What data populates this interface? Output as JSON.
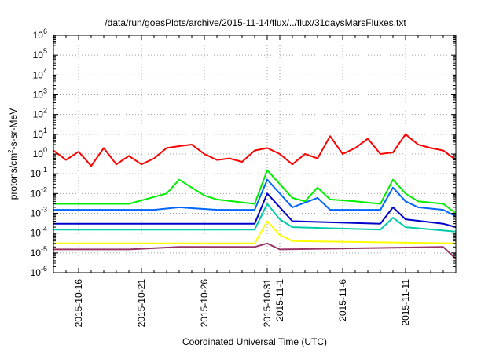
{
  "chart_data": {
    "type": "line",
    "title": "/data/run/goesPlots/archive/2015-11-14/flux/../flux/31daysMarsFluxes.txt",
    "xlabel": "Coordinated Universal Time (UTC)",
    "ylabel": "protons/cm²-s-sr-MeV",
    "ylabel_parts": [
      "protons/cm",
      "2",
      "-s-sr-MeV"
    ],
    "y_scale": "log",
    "ylim_exponents": [
      -6,
      6
    ],
    "y_ticks": [
      {
        "base": "10",
        "exp": "-6"
      },
      {
        "base": "10",
        "exp": "-5"
      },
      {
        "base": "10",
        "exp": "-4"
      },
      {
        "base": "10",
        "exp": "-3"
      },
      {
        "base": "10",
        "exp": "-2"
      },
      {
        "base": "10",
        "exp": "-1"
      },
      {
        "base": "10",
        "exp": "0"
      },
      {
        "base": "10",
        "exp": "1"
      },
      {
        "base": "10",
        "exp": "2"
      },
      {
        "base": "10",
        "exp": "3"
      },
      {
        "base": "10",
        "exp": "4"
      },
      {
        "base": "10",
        "exp": "5"
      },
      {
        "base": "10",
        "exp": "6"
      }
    ],
    "x_range": [
      "2015-10-14",
      "2015-11-15"
    ],
    "x_ticks": [
      {
        "label": "2015-10-16",
        "date": "2015-10-16"
      },
      {
        "label": "2015-10-21",
        "date": "2015-10-21"
      },
      {
        "label": "2015-10-26",
        "date": "2015-10-26"
      },
      {
        "label": "2015-10-31",
        "date": "2015-10-31"
      },
      {
        "label": "2015-11-1",
        "date": "2015-11-01"
      },
      {
        "label": "2015-11-6",
        "date": "2015-11-06"
      },
      {
        "label": "2015-11-11",
        "date": "2015-11-11"
      }
    ],
    "grid": true,
    "series": [
      {
        "color": "#ff0000",
        "points": [
          [
            "2015-10-14",
            1.5
          ],
          [
            "2015-10-15",
            0.5
          ],
          [
            "2015-10-16",
            1.3
          ],
          [
            "2015-10-17",
            0.25
          ],
          [
            "2015-10-18",
            2.0
          ],
          [
            "2015-10-19",
            0.3
          ],
          [
            "2015-10-20",
            0.8
          ],
          [
            "2015-10-21",
            0.3
          ],
          [
            "2015-10-22",
            0.6
          ],
          [
            "2015-10-23",
            2.0
          ],
          [
            "2015-10-24",
            2.5
          ],
          [
            "2015-10-25",
            3.0
          ],
          [
            "2015-10-26",
            1.0
          ],
          [
            "2015-10-27",
            0.5
          ],
          [
            "2015-10-28",
            0.6
          ],
          [
            "2015-10-29",
            0.4
          ],
          [
            "2015-10-30",
            1.5
          ],
          [
            "2015-10-31",
            2.0
          ],
          [
            "2015-11-01",
            1.0
          ],
          [
            "2015-11-02",
            0.3
          ],
          [
            "2015-11-03",
            1.0
          ],
          [
            "2015-11-04",
            0.6
          ],
          [
            "2015-11-05",
            8.0
          ],
          [
            "2015-11-06",
            1.0
          ],
          [
            "2015-11-07",
            2.0
          ],
          [
            "2015-11-08",
            6.0
          ],
          [
            "2015-11-09",
            1.0
          ],
          [
            "2015-11-10",
            1.2
          ],
          [
            "2015-11-11",
            10.0
          ],
          [
            "2015-11-12",
            3.0
          ],
          [
            "2015-11-13",
            2.0
          ],
          [
            "2015-11-14",
            1.5
          ],
          [
            "2015-11-15",
            0.5
          ]
        ]
      },
      {
        "color": "#00ee00",
        "points": [
          [
            "2015-10-14",
            0.003
          ],
          [
            "2015-10-20",
            0.003
          ],
          [
            "2015-10-23",
            0.01
          ],
          [
            "2015-10-24",
            0.05
          ],
          [
            "2015-10-25",
            0.02
          ],
          [
            "2015-10-26",
            0.008
          ],
          [
            "2015-10-27",
            0.005
          ],
          [
            "2015-10-30",
            0.003
          ],
          [
            "2015-10-31",
            0.15
          ],
          [
            "2015-11-01",
            0.03
          ],
          [
            "2015-11-02",
            0.006
          ],
          [
            "2015-11-03",
            0.004
          ],
          [
            "2015-11-04",
            0.02
          ],
          [
            "2015-11-05",
            0.005
          ],
          [
            "2015-11-07",
            0.004
          ],
          [
            "2015-11-09",
            0.003
          ],
          [
            "2015-11-10",
            0.05
          ],
          [
            "2015-11-11",
            0.01
          ],
          [
            "2015-11-12",
            0.004
          ],
          [
            "2015-11-14",
            0.003
          ],
          [
            "2015-11-15",
            0.001
          ]
        ]
      },
      {
        "color": "#0066ff",
        "points": [
          [
            "2015-10-14",
            0.0015
          ],
          [
            "2015-10-22",
            0.0015
          ],
          [
            "2015-10-24",
            0.002
          ],
          [
            "2015-10-27",
            0.0015
          ],
          [
            "2015-10-30",
            0.0015
          ],
          [
            "2015-10-31",
            0.05
          ],
          [
            "2015-11-01",
            0.01
          ],
          [
            "2015-11-02",
            0.002
          ],
          [
            "2015-11-04",
            0.006
          ],
          [
            "2015-11-05",
            0.0015
          ],
          [
            "2015-11-09",
            0.0015
          ],
          [
            "2015-11-10",
            0.02
          ],
          [
            "2015-11-11",
            0.004
          ],
          [
            "2015-11-12",
            0.002
          ],
          [
            "2015-11-14",
            0.0015
          ],
          [
            "2015-11-15",
            0.0007
          ]
        ]
      },
      {
        "color": "#0000cc",
        "points": [
          [
            "2015-10-14",
            0.0003
          ],
          [
            "2015-10-30",
            0.0003
          ],
          [
            "2015-10-31",
            0.01
          ],
          [
            "2015-11-01",
            0.002
          ],
          [
            "2015-11-02",
            0.0004
          ],
          [
            "2015-11-09",
            0.0003
          ],
          [
            "2015-11-10",
            0.002
          ],
          [
            "2015-11-11",
            0.0005
          ],
          [
            "2015-11-14",
            0.0003
          ],
          [
            "2015-11-15",
            0.0002
          ]
        ]
      },
      {
        "color": "#00ccaa",
        "points": [
          [
            "2015-10-14",
            0.00015
          ],
          [
            "2015-10-30",
            0.00015
          ],
          [
            "2015-10-31",
            0.003
          ],
          [
            "2015-11-01",
            0.0005
          ],
          [
            "2015-11-02",
            0.0002
          ],
          [
            "2015-11-09",
            0.00015
          ],
          [
            "2015-11-10",
            0.0006
          ],
          [
            "2015-11-11",
            0.0002
          ],
          [
            "2015-11-15",
            0.00012
          ]
        ]
      },
      {
        "color": "#ffff00",
        "points": [
          [
            "2015-10-14",
            3e-05
          ],
          [
            "2015-10-30",
            3e-05
          ],
          [
            "2015-10-31",
            0.0004
          ],
          [
            "2015-11-01",
            8e-05
          ],
          [
            "2015-11-02",
            4e-05
          ],
          [
            "2015-11-15",
            3e-05
          ]
        ]
      },
      {
        "color": "#993366",
        "points": [
          [
            "2015-10-14",
            1.5e-05
          ],
          [
            "2015-10-20",
            1.5e-05
          ],
          [
            "2015-10-24",
            2e-05
          ],
          [
            "2015-10-30",
            2e-05
          ],
          [
            "2015-10-31",
            3e-05
          ],
          [
            "2015-11-01",
            1.5e-05
          ],
          [
            "2015-11-14",
            2e-05
          ],
          [
            "2015-11-15",
            5e-06
          ]
        ]
      }
    ]
  }
}
